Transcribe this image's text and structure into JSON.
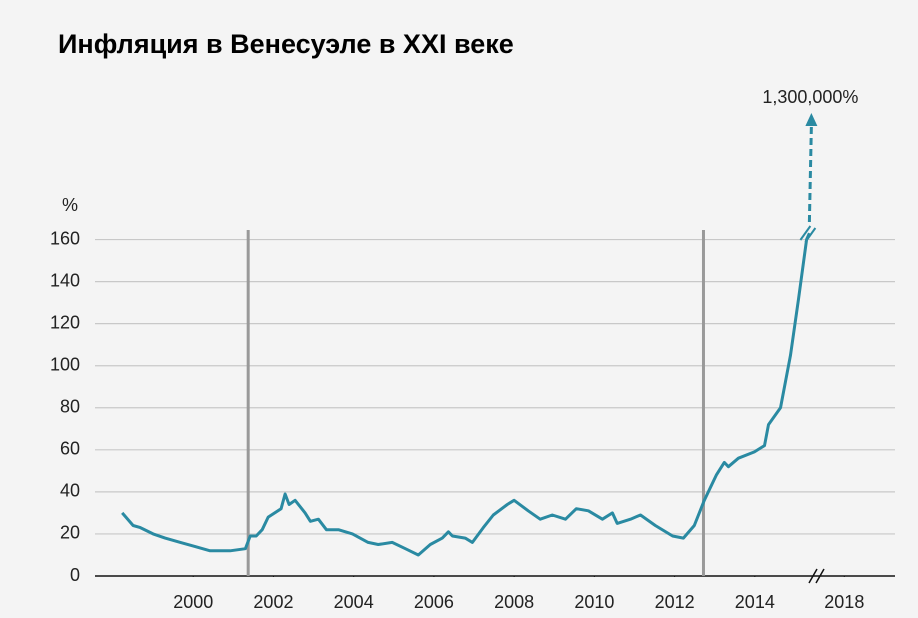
{
  "chart_data": {
    "type": "line",
    "title": "Инфляция в Венесуэле в XXI веке",
    "ylabel": "%",
    "x": [
      1998.23,
      1998.5,
      1998.68,
      1999.0,
      1999.3,
      1999.68,
      2000.05,
      2000.42,
      2000.92,
      2001.3,
      2001.42,
      2001.57,
      2001.72,
      2001.87,
      2002.19,
      2002.29,
      2002.39,
      2002.54,
      2002.79,
      2002.92,
      2003.12,
      2003.32,
      2003.62,
      2003.97,
      2004.36,
      2004.61,
      2004.96,
      2005.29,
      2005.61,
      2005.91,
      2006.21,
      2006.36,
      2006.46,
      2006.78,
      2006.96,
      2007.23,
      2007.48,
      2007.83,
      2008.0,
      2008.35,
      2008.65,
      2008.95,
      2009.28,
      2009.55,
      2009.85,
      2010.2,
      2010.45,
      2010.57,
      2010.9,
      2011.15,
      2011.52,
      2011.95,
      2012.22,
      2012.49,
      2012.74,
      2013.04,
      2013.24,
      2013.34,
      2013.59,
      2013.99,
      2014.24,
      2014.34,
      2014.64,
      2014.89,
      2015.09,
      2015.29,
      2015.36
    ],
    "series": [
      {
        "color": "#2a8aa2",
        "values": [
          30,
          24,
          23,
          20,
          18,
          16,
          14,
          12,
          12,
          13,
          19,
          19,
          22,
          28,
          32,
          39,
          34,
          36,
          30,
          26,
          27,
          22,
          22,
          20,
          16,
          15,
          16,
          13,
          10,
          15,
          18,
          21,
          19,
          18,
          16,
          23,
          29,
          34,
          36,
          31,
          27,
          29,
          27,
          32,
          31,
          27,
          30,
          25,
          27,
          29,
          24,
          19,
          18,
          24,
          36,
          48,
          54,
          52,
          56,
          59,
          62,
          72,
          80,
          105,
          132,
          160,
          163
        ]
      }
    ],
    "vlines": [
      2001.37,
      2012.72
    ],
    "annotation": {
      "label": "1,300,000%",
      "value": 1300000
    },
    "xlim": [
      1998,
      2022
    ],
    "x_break": 2015.5,
    "xticks": [
      2000,
      2002,
      2004,
      2006,
      2008,
      2010,
      2012,
      2014,
      2018
    ],
    "ylim": [
      0,
      175
    ],
    "yticks": [
      0,
      20,
      40,
      60,
      80,
      100,
      120,
      140,
      160
    ],
    "grid": true
  }
}
